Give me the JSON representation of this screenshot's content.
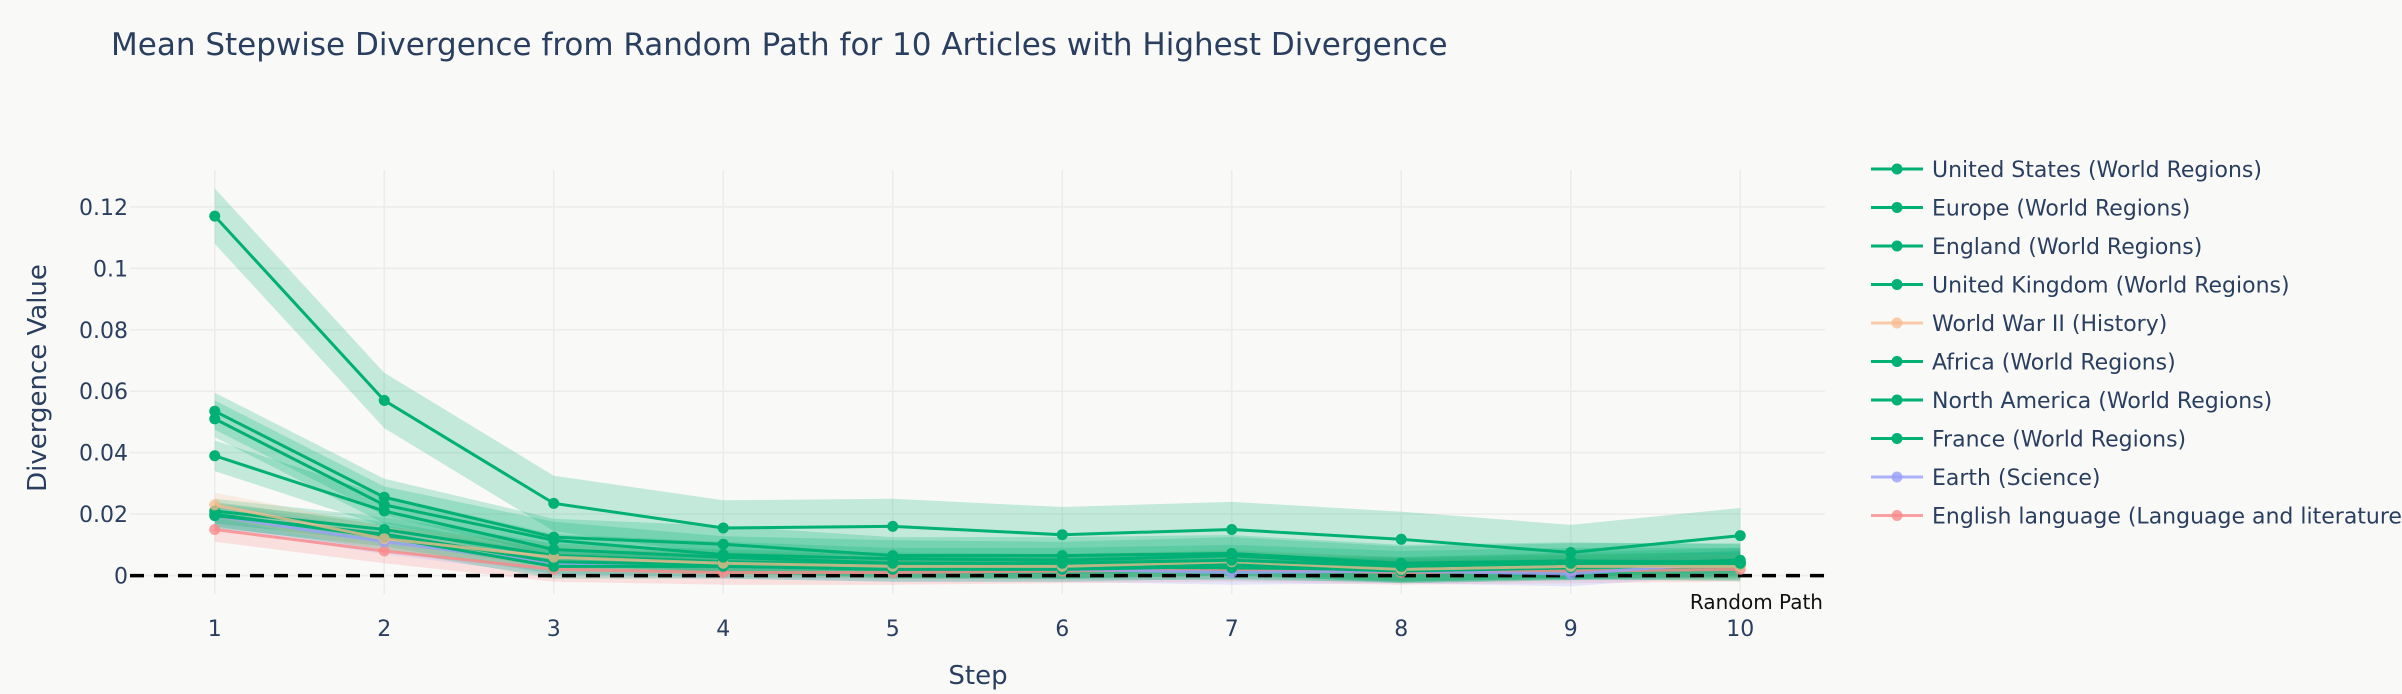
{
  "chart_data": {
    "type": "line",
    "title": "Mean Stepwise Divergence from Random Path for 10 Articles with Highest Divergence",
    "xlabel": "Step",
    "ylabel": "Divergence Value",
    "x": [
      1,
      2,
      3,
      4,
      5,
      6,
      7,
      8,
      9,
      10
    ],
    "xlim": [
      0.5,
      10.5
    ],
    "ylim": [
      -0.006,
      0.132
    ],
    "yticks": [
      0,
      0.02,
      0.04,
      0.06,
      0.08,
      0.1,
      0.12
    ],
    "ytick_labels": [
      "0",
      "0.02",
      "0.04",
      "0.06",
      "0.08",
      "0.1",
      "0.12"
    ],
    "xticks": [
      1,
      2,
      3,
      4,
      5,
      6,
      7,
      8,
      9,
      10
    ],
    "xtick_labels": [
      "1",
      "2",
      "3",
      "4",
      "5",
      "6",
      "7",
      "8",
      "9",
      "10"
    ],
    "grid": true,
    "legend_position": "right",
    "baseline": {
      "y": 0,
      "label": "Random Path",
      "style": "dashed",
      "color": "#000000"
    },
    "series": [
      {
        "name": "United States (World Regions)",
        "color": "#00b074",
        "values": [
          0.117,
          0.057,
          0.0235,
          0.0155,
          0.016,
          0.0133,
          0.015,
          0.0118,
          0.0075,
          0.013
        ],
        "band": 0.009,
        "opacity": 1.0
      },
      {
        "name": "Europe (World Regions)",
        "color": "#00b074",
        "values": [
          0.0535,
          0.0255,
          0.0125,
          0.0102,
          0.0065,
          0.0065,
          0.0072,
          0.004,
          0.0048,
          0.0042
        ],
        "band": 0.006,
        "opacity": 1.0
      },
      {
        "name": "England (World Regions)",
        "color": "#00b074",
        "values": [
          0.051,
          0.023,
          0.0115,
          0.0068,
          0.0055,
          0.005,
          0.0065,
          0.0035,
          0.0045,
          0.0045
        ],
        "band": 0.006,
        "opacity": 1.0
      },
      {
        "name": "United Kingdom (World Regions)",
        "color": "#00b074",
        "values": [
          0.039,
          0.021,
          0.0085,
          0.006,
          0.004,
          0.004,
          0.005,
          0.003,
          0.004,
          0.004
        ],
        "band": 0.005,
        "opacity": 1.0
      },
      {
        "name": "World War II (History)",
        "color": "#f7b98c",
        "values": [
          0.023,
          0.012,
          0.006,
          0.004,
          0.003,
          0.003,
          0.0045,
          0.002,
          0.003,
          0.003
        ],
        "band": 0.004,
        "opacity": 0.75
      },
      {
        "name": "Africa (World Regions)",
        "color": "#00b074",
        "values": [
          0.021,
          0.015,
          0.0065,
          0.0045,
          0.0035,
          0.003,
          0.004,
          0.002,
          0.003,
          0.0035
        ],
        "band": 0.004,
        "opacity": 1.0
      },
      {
        "name": "North America (World Regions)",
        "color": "#00b074",
        "values": [
          0.0195,
          0.0135,
          0.0045,
          0.0035,
          0.003,
          0.0028,
          0.0025,
          0.002,
          0.0035,
          0.005
        ],
        "band": 0.004,
        "opacity": 1.0
      },
      {
        "name": "France (World Regions)",
        "color": "#00b074",
        "values": [
          0.02,
          0.0125,
          0.003,
          0.003,
          0.002,
          0.002,
          0.003,
          0.0015,
          0.0025,
          0.004
        ],
        "band": 0.004,
        "opacity": 1.0
      },
      {
        "name": "Earth (Science)",
        "color": "#99a0f9",
        "values": [
          0.0195,
          0.011,
          0.004,
          0.003,
          0.002,
          0.002,
          0.001,
          0.0015,
          0.0005,
          0.0045
        ],
        "band": 0.004,
        "opacity": 0.8
      },
      {
        "name": "English language (Language and literature)",
        "color": "#f98a8a",
        "values": [
          0.015,
          0.008,
          0.002,
          0.001,
          0.001,
          0.0015,
          0.002,
          0.001,
          0.0015,
          0.002
        ],
        "band": 0.004,
        "opacity": 0.8
      }
    ]
  }
}
